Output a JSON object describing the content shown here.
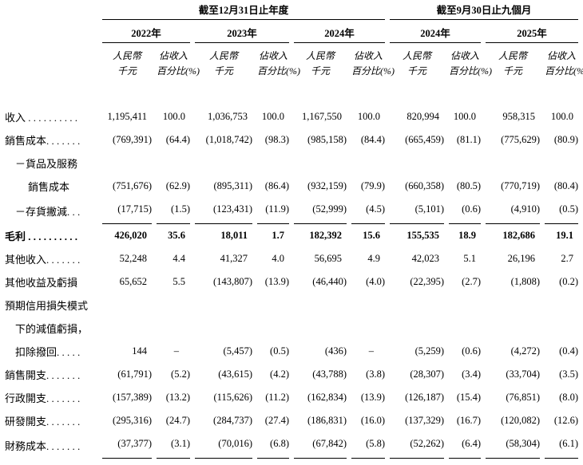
{
  "table": {
    "col_groups": [
      {
        "label": "截至12月31日止年度",
        "span": 6
      },
      {
        "label": "截至9月30日止九個月",
        "span": 4
      }
    ],
    "years": [
      "2022年",
      "2023年",
      "2024年",
      "2024年",
      "2025年"
    ],
    "subheader": {
      "rmb_line1": "人民幣",
      "rmb_line2": "千元",
      "pct_line1": "佔收入",
      "pct_line2": "百分比(%)"
    },
    "rows": [
      {
        "label": "收入 . . . . . . . . . .",
        "indent": 0,
        "bold": false,
        "rule_below": false,
        "values": [
          "1,195,411",
          "100.0",
          "1,036,753",
          "100.0",
          "1,167,550",
          "100.0",
          "820,994",
          "100.0",
          "958,315",
          "100.0"
        ]
      },
      {
        "label": "銷售成本. . . . . . .",
        "indent": 0,
        "bold": false,
        "rule_below": false,
        "values": [
          "(769,391)",
          "(64.4)",
          "(1,018,742)",
          "(98.3)",
          "(985,158)",
          "(84.4)",
          "(665,459)",
          "(81.1)",
          "(775,629)",
          "(80.9)"
        ]
      },
      {
        "label": "－貨品及服務",
        "indent": 1,
        "bold": false,
        "rule_below": false,
        "values": []
      },
      {
        "label": "銷售成本",
        "indent": 2,
        "bold": false,
        "rule_below": false,
        "values": [
          "(751,676)",
          "(62.9)",
          "(895,311)",
          "(86.4)",
          "(932,159)",
          "(79.9)",
          "(660,358)",
          "(80.5)",
          "(770,719)",
          "(80.4)"
        ]
      },
      {
        "label": "－存貨撇減. . .",
        "indent": 1,
        "bold": false,
        "rule_below": true,
        "values": [
          "(17,715)",
          "(1.5)",
          "(123,431)",
          "(11.9)",
          "(52,999)",
          "(4.5)",
          "(5,101)",
          "(0.6)",
          "(4,910)",
          "(0.5)"
        ]
      },
      {
        "label": "毛利 . . . . . . . . . .",
        "indent": 0,
        "bold": true,
        "rule_below": false,
        "values": [
          "426,020",
          "35.6",
          "18,011",
          "1.7",
          "182,392",
          "15.6",
          "155,535",
          "18.9",
          "182,686",
          "19.1"
        ]
      },
      {
        "label": "其他收入. . . . . . .",
        "indent": 0,
        "bold": false,
        "rule_below": false,
        "values": [
          "52,248",
          "4.4",
          "41,327",
          "4.0",
          "56,695",
          "4.9",
          "42,023",
          "5.1",
          "26,196",
          "2.7"
        ]
      },
      {
        "label": "其他收益及虧損",
        "indent": 0,
        "bold": false,
        "rule_below": false,
        "values": [
          "65,652",
          "5.5",
          "(143,807)",
          "(13.9)",
          "(46,440)",
          "(4.0)",
          "(22,395)",
          "(2.7)",
          "(1,808)",
          "(0.2)"
        ]
      },
      {
        "label": "預期信用損失模式",
        "indent": 0,
        "bold": false,
        "rule_below": false,
        "values": []
      },
      {
        "label": "下的減值虧損，",
        "indent": 1,
        "bold": false,
        "rule_below": false,
        "values": []
      },
      {
        "label": "扣除撥回. . . . .",
        "indent": 1,
        "bold": false,
        "rule_below": false,
        "values": [
          "144",
          "–",
          "(5,457)",
          "(0.5)",
          "(436)",
          "–",
          "(5,259)",
          "(0.6)",
          "(4,272)",
          "(0.4)"
        ]
      },
      {
        "label": "銷售開支. . . . . . .",
        "indent": 0,
        "bold": false,
        "rule_below": false,
        "values": [
          "(61,791)",
          "(5.2)",
          "(43,615)",
          "(4.2)",
          "(43,788)",
          "(3.8)",
          "(28,307)",
          "(3.4)",
          "(33,704)",
          "(3.5)"
        ]
      },
      {
        "label": "行政開支. . . . . . .",
        "indent": 0,
        "bold": false,
        "rule_below": false,
        "values": [
          "(157,389)",
          "(13.2)",
          "(115,626)",
          "(11.2)",
          "(162,834)",
          "(13.9)",
          "(126,187)",
          "(15.4)",
          "(76,851)",
          "(8.0)"
        ]
      },
      {
        "label": "研發開支. . . . . . .",
        "indent": 0,
        "bold": false,
        "rule_below": false,
        "values": [
          "(295,316)",
          "(24.7)",
          "(284,737)",
          "(27.4)",
          "(186,831)",
          "(16.0)",
          "(137,329)",
          "(16.7)",
          "(120,082)",
          "(12.6)"
        ]
      },
      {
        "label": "財務成本. . . . . . .",
        "indent": 0,
        "bold": false,
        "rule_below": true,
        "values": [
          "(37,377)",
          "(3.1)",
          "(70,016)",
          "(6.8)",
          "(67,842)",
          "(5.8)",
          "(52,262)",
          "(6.4)",
          "(58,304)",
          "(6.1)"
        ]
      }
    ]
  }
}
